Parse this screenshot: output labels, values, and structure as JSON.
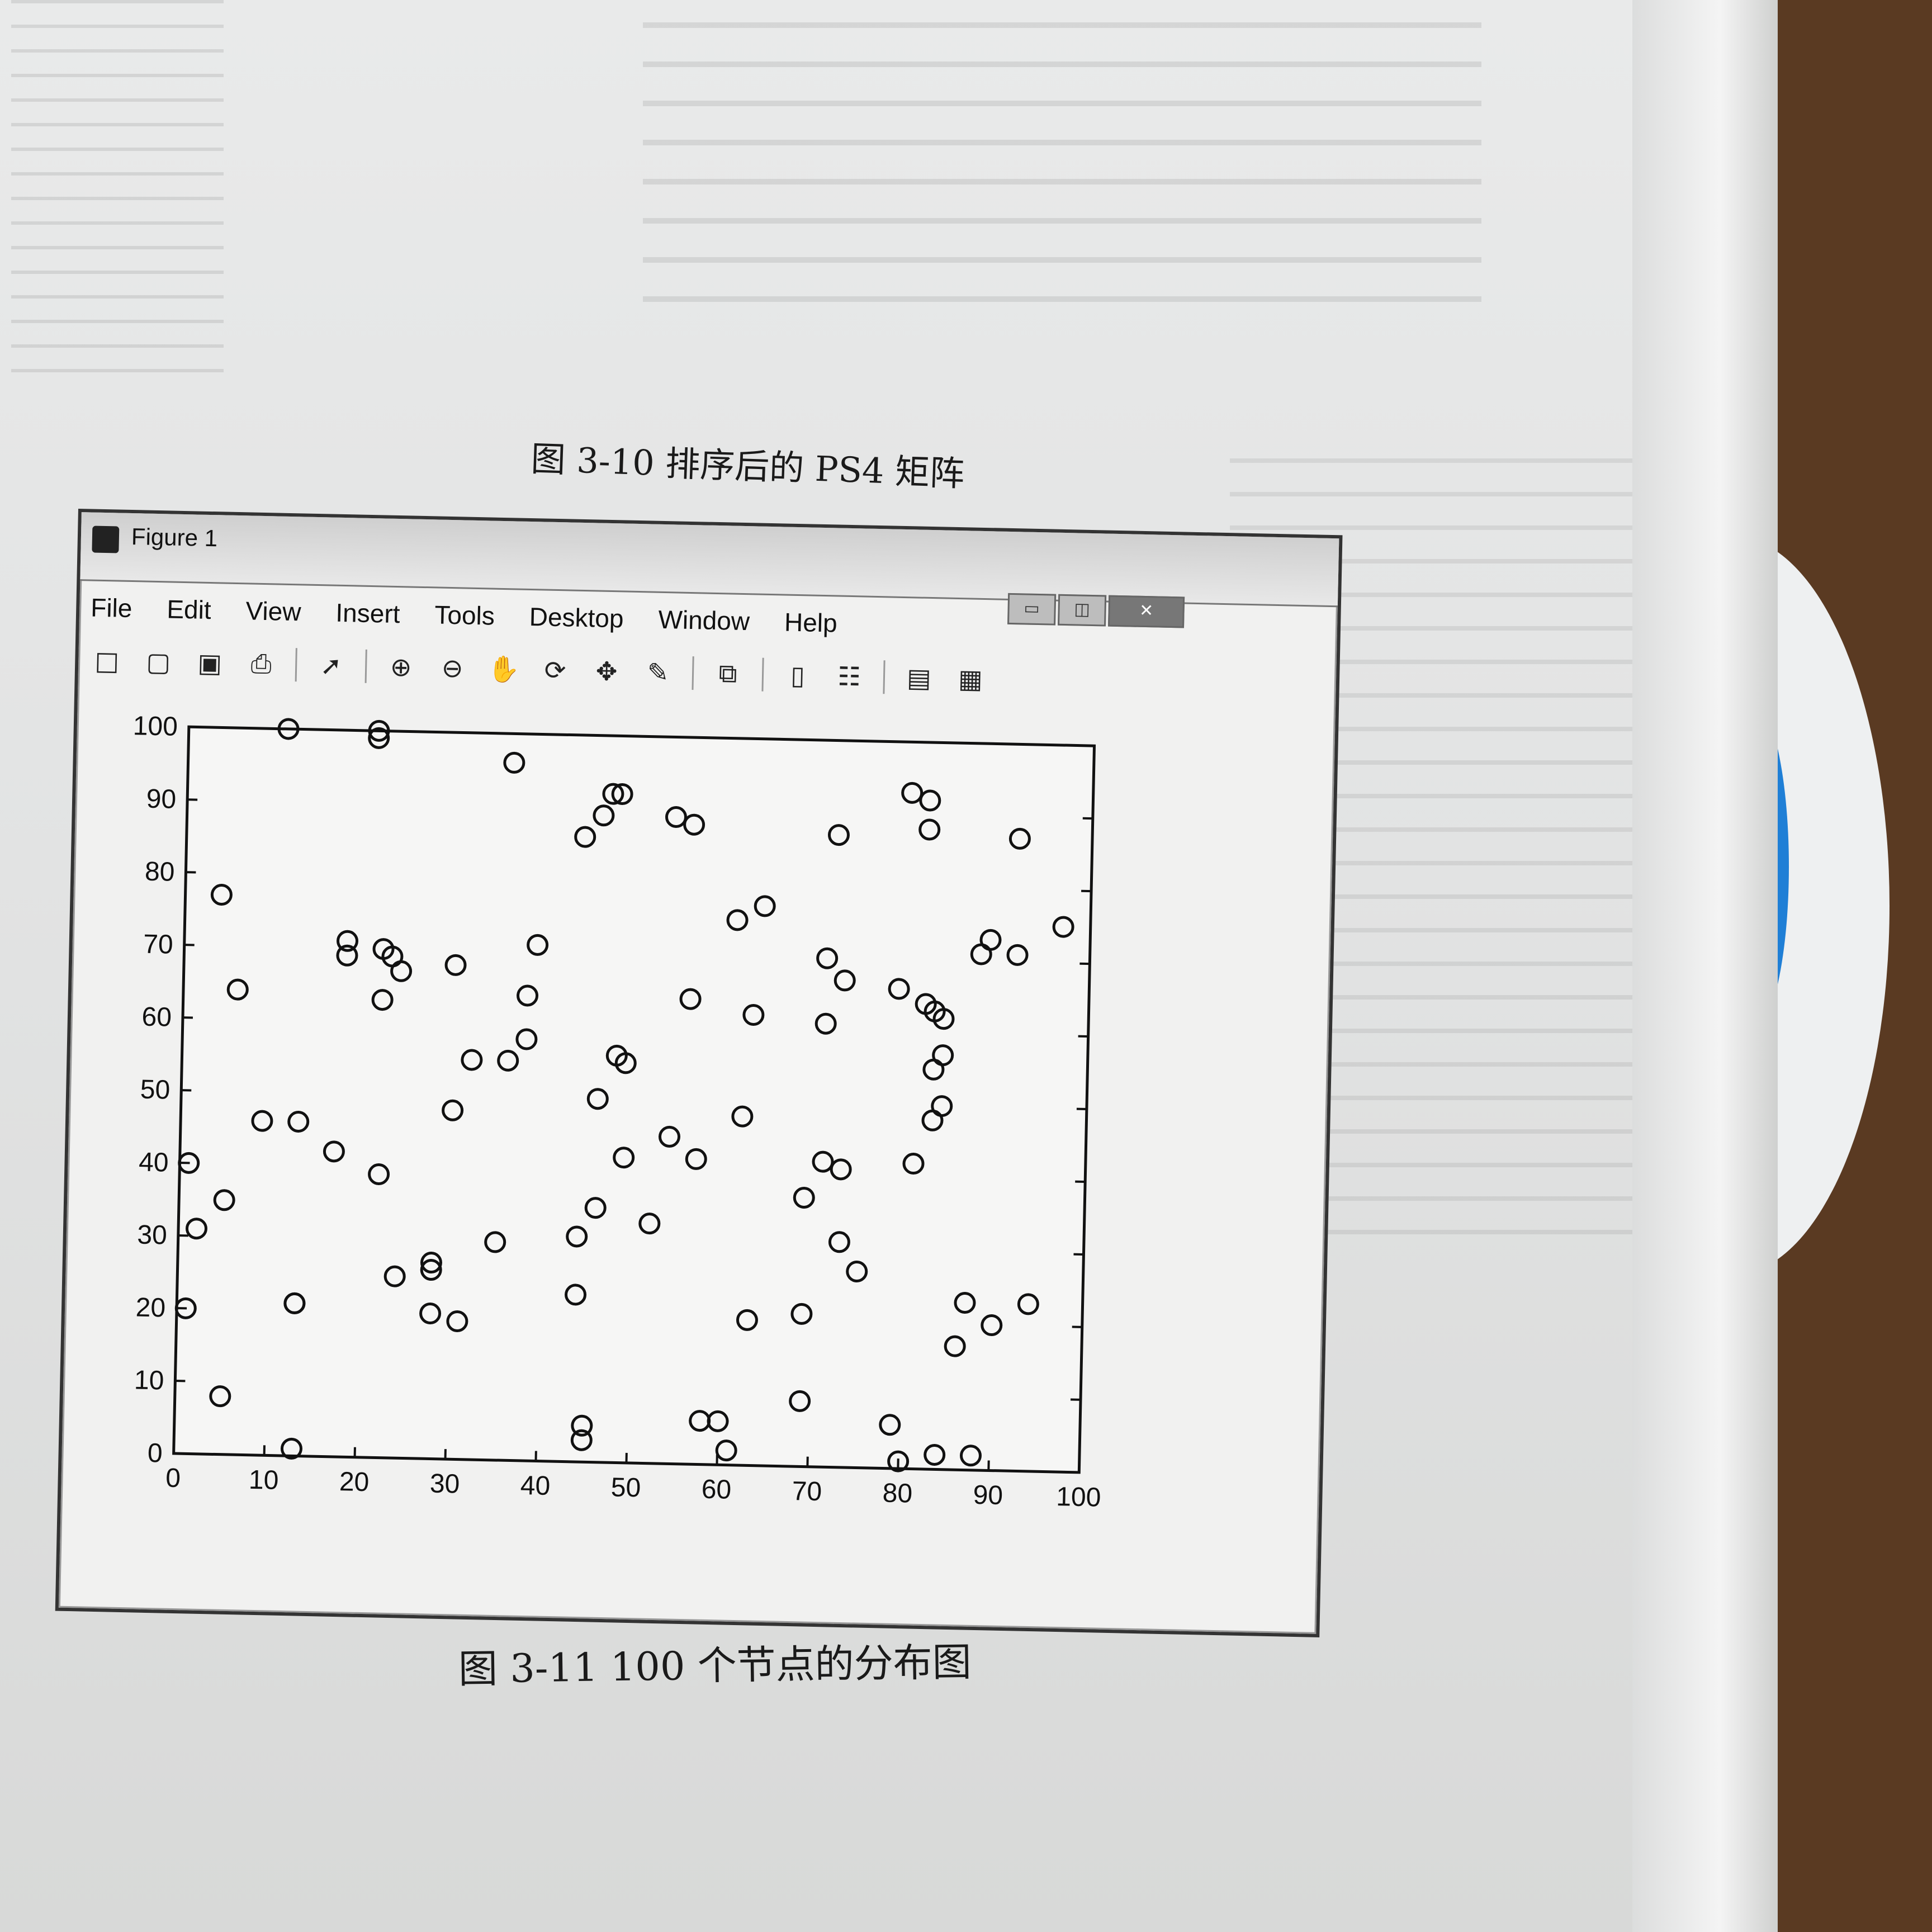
{
  "window": {
    "title": "Figure 1",
    "buttons": {
      "minimize": "▭",
      "maximize": "◫",
      "close": "✕"
    }
  },
  "menu": [
    "File",
    "Edit",
    "View",
    "Insert",
    "Tools",
    "Desktop",
    "Window",
    "Help"
  ],
  "toolbar": [
    {
      "icon": "new-figure-icon",
      "glyph": "□"
    },
    {
      "icon": "open-icon",
      "glyph": "▢"
    },
    {
      "icon": "save-icon",
      "glyph": "▣"
    },
    {
      "icon": "print-icon",
      "glyph": "⎙"
    },
    {
      "icon": "pointer-icon",
      "glyph": "➚"
    },
    {
      "icon": "zoom-in-icon",
      "glyph": "⊕"
    },
    {
      "icon": "zoom-out-icon",
      "glyph": "⊖"
    },
    {
      "icon": "pan-icon",
      "glyph": "✋"
    },
    {
      "icon": "rotate-icon",
      "glyph": "⟳"
    },
    {
      "icon": "data-cursor-icon",
      "glyph": "✥"
    },
    {
      "icon": "brush-icon",
      "glyph": "✎"
    },
    {
      "icon": "link-icon",
      "glyph": "⧉"
    },
    {
      "icon": "colorbar-icon",
      "glyph": "▯"
    },
    {
      "icon": "legend-icon",
      "glyph": "☷"
    },
    {
      "icon": "hide-tools-icon",
      "glyph": "▤"
    },
    {
      "icon": "dock-icon",
      "glyph": "▦"
    }
  ],
  "captions": {
    "top": "图 3-10   排序后的 PS4 矩阵",
    "bottom": "图 3-11   100 个节点的分布图"
  },
  "chart_data": {
    "type": "scatter",
    "marker": "circle-open",
    "color": "#111111",
    "title": "",
    "xlabel": "",
    "ylabel": "",
    "xlim": [
      0,
      100
    ],
    "ylim": [
      0,
      100
    ],
    "xticks": [
      0,
      10,
      20,
      30,
      40,
      50,
      60,
      70,
      80,
      90,
      100
    ],
    "yticks": [
      0,
      10,
      20,
      30,
      40,
      50,
      60,
      70,
      80,
      90,
      100
    ],
    "points": [
      [
        11,
        100
      ],
      [
        21,
        100
      ],
      [
        21,
        99
      ],
      [
        36,
        96
      ],
      [
        44,
        86
      ],
      [
        46,
        89
      ],
      [
        47,
        92
      ],
      [
        48,
        92
      ],
      [
        54,
        89
      ],
      [
        56,
        88
      ],
      [
        80,
        93
      ],
      [
        82,
        92
      ],
      [
        82,
        88
      ],
      [
        72,
        87
      ],
      [
        92,
        87
      ],
      [
        4,
        77
      ],
      [
        6,
        64
      ],
      [
        18,
        71
      ],
      [
        18,
        69
      ],
      [
        22,
        70
      ],
      [
        23,
        69
      ],
      [
        24,
        67
      ],
      [
        22,
        63
      ],
      [
        30,
        68
      ],
      [
        36,
        55
      ],
      [
        32,
        55
      ],
      [
        39,
        71
      ],
      [
        38,
        64
      ],
      [
        38,
        58
      ],
      [
        30,
        48
      ],
      [
        46,
        50
      ],
      [
        48,
        56
      ],
      [
        49,
        55
      ],
      [
        56,
        64
      ],
      [
        61,
        75
      ],
      [
        64,
        77
      ],
      [
        63,
        62
      ],
      [
        71,
        70
      ],
      [
        73,
        67
      ],
      [
        71,
        61
      ],
      [
        79,
        66
      ],
      [
        82,
        64
      ],
      [
        83,
        63
      ],
      [
        84,
        62
      ],
      [
        83,
        55
      ],
      [
        84,
        57
      ],
      [
        84,
        50
      ],
      [
        83,
        48
      ],
      [
        81,
        42
      ],
      [
        88,
        71
      ],
      [
        89,
        73
      ],
      [
        92,
        71
      ],
      [
        97,
        75
      ],
      [
        1,
        40
      ],
      [
        2,
        31
      ],
      [
        5,
        35
      ],
      [
        9,
        46
      ],
      [
        13,
        46
      ],
      [
        17,
        42
      ],
      [
        22,
        39
      ],
      [
        24,
        25
      ],
      [
        28,
        26
      ],
      [
        28,
        27
      ],
      [
        35,
        30
      ],
      [
        44,
        31
      ],
      [
        44,
        23
      ],
      [
        46,
        35
      ],
      [
        49,
        42
      ],
      [
        54,
        45
      ],
      [
        57,
        42
      ],
      [
        52,
        33
      ],
      [
        62,
        48
      ],
      [
        69,
        37
      ],
      [
        71,
        42
      ],
      [
        73,
        41
      ],
      [
        73,
        31
      ],
      [
        75,
        27
      ],
      [
        63,
        20
      ],
      [
        69,
        21
      ],
      [
        69,
        9
      ],
      [
        1,
        20
      ],
      [
        13,
        21
      ],
      [
        13,
        21
      ],
      [
        28,
        20
      ],
      [
        31,
        19
      ],
      [
        5,
        8
      ],
      [
        13,
        1
      ],
      [
        45,
        5
      ],
      [
        45,
        3
      ],
      [
        58,
        6
      ],
      [
        60,
        6
      ],
      [
        61,
        2
      ],
      [
        79,
        6
      ],
      [
        80,
        1
      ],
      [
        84,
        2
      ],
      [
        88,
        2
      ],
      [
        86,
        17
      ],
      [
        87,
        23
      ],
      [
        90,
        20
      ],
      [
        94,
        23
      ]
    ]
  }
}
